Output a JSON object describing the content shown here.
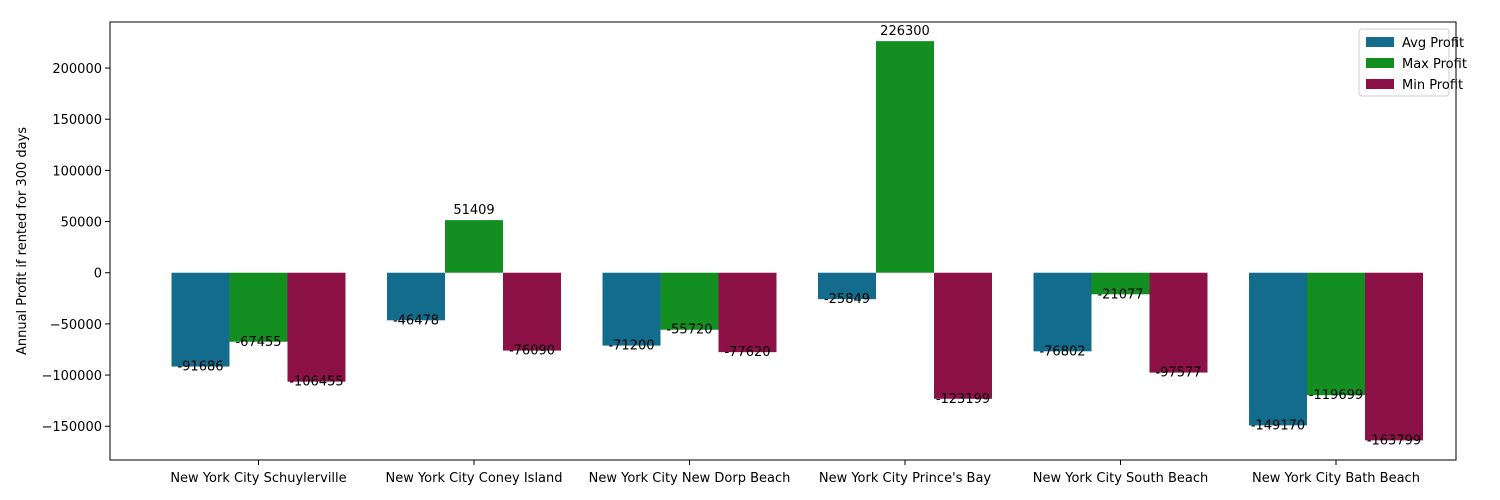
{
  "chart_data": {
    "type": "bar",
    "title": "",
    "xlabel": "",
    "ylabel": "Annual Profit if rented for 300 days",
    "ylim": [
      -183000,
      245000
    ],
    "yticks": [
      -150000,
      -100000,
      -50000,
      0,
      50000,
      100000,
      150000,
      200000
    ],
    "categories": [
      "New York City Schuylerville",
      "New York City Coney Island",
      "New York City New Dorp Beach",
      "New York City Prince's Bay",
      "New York City South Beach",
      "New York City Bath Beach"
    ],
    "series": [
      {
        "name": "Avg Profit",
        "color": "#146c8c",
        "values": [
          -91686,
          -46478,
          -71200,
          -25849,
          -76802,
          -149170
        ]
      },
      {
        "name": "Max Profit",
        "color": "#138f22",
        "values": [
          -67455,
          51409,
          -55720,
          226300,
          -21077,
          -119699
        ]
      },
      {
        "name": "Min Profit",
        "color": "#8b1146",
        "values": [
          -106455,
          -76090,
          -77620,
          -123199,
          -97577,
          -163799
        ]
      }
    ],
    "legend_position": "top-right",
    "grid": false
  }
}
